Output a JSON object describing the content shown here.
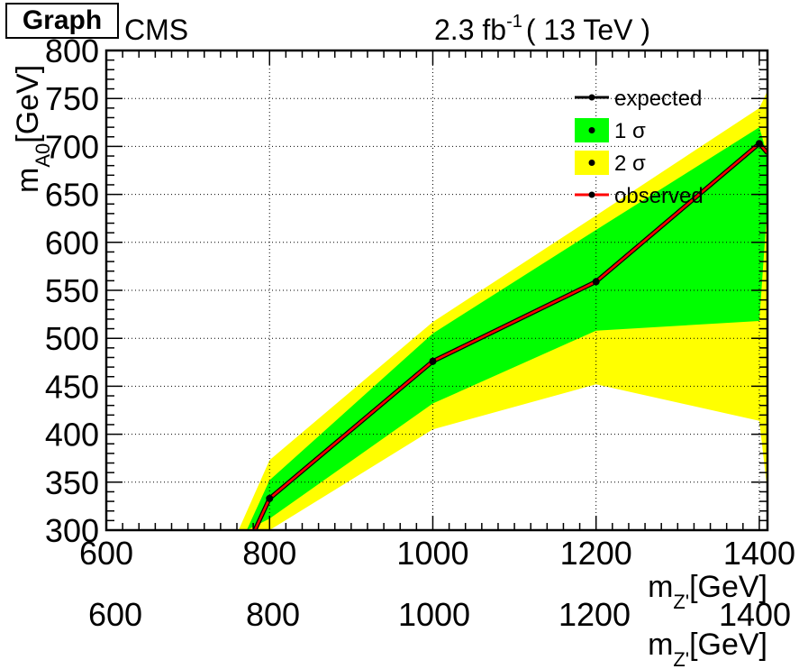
{
  "graph_title_box": "Graph",
  "header": {
    "experiment": "CMS",
    "luminosity_prefix": "2.3 fb",
    "luminosity_exp": "-1",
    "energy": "( 13 TeV )"
  },
  "chart_data": {
    "type": "line",
    "xlabel_main": "m",
    "xlabel_sub": "Z'",
    "xlabel_unit": "[GeV]",
    "ylabel_main": "m",
    "ylabel_sub": "A0",
    "ylabel_unit": "[GeV]",
    "xlim": [
      600,
      1410
    ],
    "ylim": [
      300,
      800
    ],
    "grid": true,
    "x_ticks": [
      600,
      800,
      1000,
      1200,
      1400
    ],
    "y_ticks": [
      300,
      350,
      400,
      450,
      500,
      550,
      600,
      650,
      700,
      750,
      800
    ],
    "legend_position": "top-right",
    "legend": [
      "expected",
      "1 σ",
      "2 σ",
      "observed"
    ],
    "series": [
      {
        "name": "expected",
        "x": [
          782,
          800,
          1000,
          1200,
          1400,
          1410
        ],
        "y": [
          300,
          333,
          476,
          559,
          703,
          693
        ],
        "color": "#000000"
      },
      {
        "name": "observed",
        "x": [
          782,
          800,
          1000,
          1200,
          1400,
          1410
        ],
        "y": [
          300,
          333,
          476,
          559,
          703,
          693
        ],
        "color": "#ff0000"
      }
    ],
    "band_1sigma": {
      "color": "#00ff00",
      "x": [
        772,
        800,
        1000,
        1200,
        1400,
        1410
      ],
      "upper": [
        300,
        352,
        505,
        613,
        720,
        690
      ],
      "lower": [
        300,
        312,
        432,
        508,
        518,
        640
      ]
    },
    "band_2sigma": {
      "color": "#ffff00",
      "x": [
        762,
        800,
        1000,
        1200,
        1400,
        1410
      ],
      "upper": [
        300,
        373,
        517,
        628,
        740,
        758
      ],
      "lower": [
        300,
        300,
        405,
        452,
        414,
        340
      ]
    }
  },
  "ghost_axis": {
    "tick_labels": [
      "600",
      "800",
      "1000",
      "1200",
      "1400"
    ],
    "label_main": "m",
    "label_sub": "Z'",
    "label_unit": "[GeV]"
  }
}
